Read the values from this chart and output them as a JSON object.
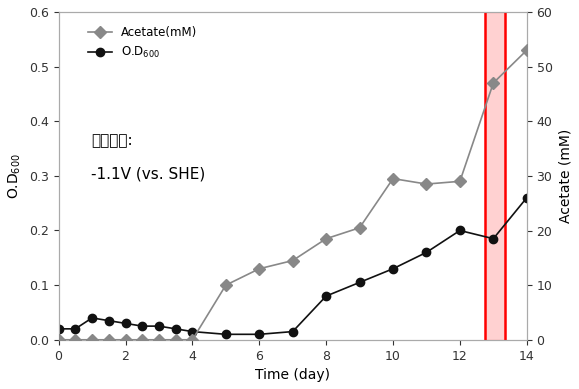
{
  "acetate_x": [
    0,
    0.5,
    1,
    1.5,
    2,
    2.5,
    3,
    3.5,
    4,
    5,
    6,
    7,
    8,
    9,
    10,
    11,
    12,
    13,
    14
  ],
  "acetate_y": [
    0,
    0,
    0,
    0,
    0,
    0,
    0,
    0,
    0,
    10,
    13,
    14.5,
    18.5,
    20.5,
    29.5,
    28.5,
    29,
    47,
    53
  ],
  "od_x": [
    0,
    0.5,
    1,
    1.5,
    2,
    2.5,
    3,
    3.5,
    4,
    5,
    6,
    7,
    8,
    9,
    10,
    11,
    12,
    13,
    14
  ],
  "od_y": [
    0.02,
    0.02,
    0.04,
    0.035,
    0.03,
    0.025,
    0.025,
    0.02,
    0.015,
    0.01,
    0.01,
    0.015,
    0.08,
    0.105,
    0.13,
    0.16,
    0.2,
    0.185,
    0.26
  ],
  "xlim": [
    0,
    14
  ],
  "ylim_left": [
    0,
    0.6
  ],
  "ylim_right": [
    0,
    60
  ],
  "xlabel": "Time (day)",
  "ylabel_left": "O.D$_{600}$",
  "ylabel_right": "Acetate (mM)",
  "yticks_left": [
    0.0,
    0.1,
    0.2,
    0.3,
    0.4,
    0.5,
    0.6
  ],
  "yticks_right": [
    0,
    10,
    20,
    30,
    40,
    50,
    60
  ],
  "xticks": [
    0,
    2,
    4,
    6,
    8,
    10,
    12,
    14
  ],
  "annotation_line1": "전압인가:",
  "annotation_line2": "-1.1V (vs. SHE)",
  "red_band_x1": 12.75,
  "red_band_x2": 13.35,
  "acetate_color": "#888888",
  "od_color": "#111111",
  "legend_acetate": "Acetate(mM)",
  "legend_od": "O.D$_{600}$",
  "background_color": "#ffffff"
}
